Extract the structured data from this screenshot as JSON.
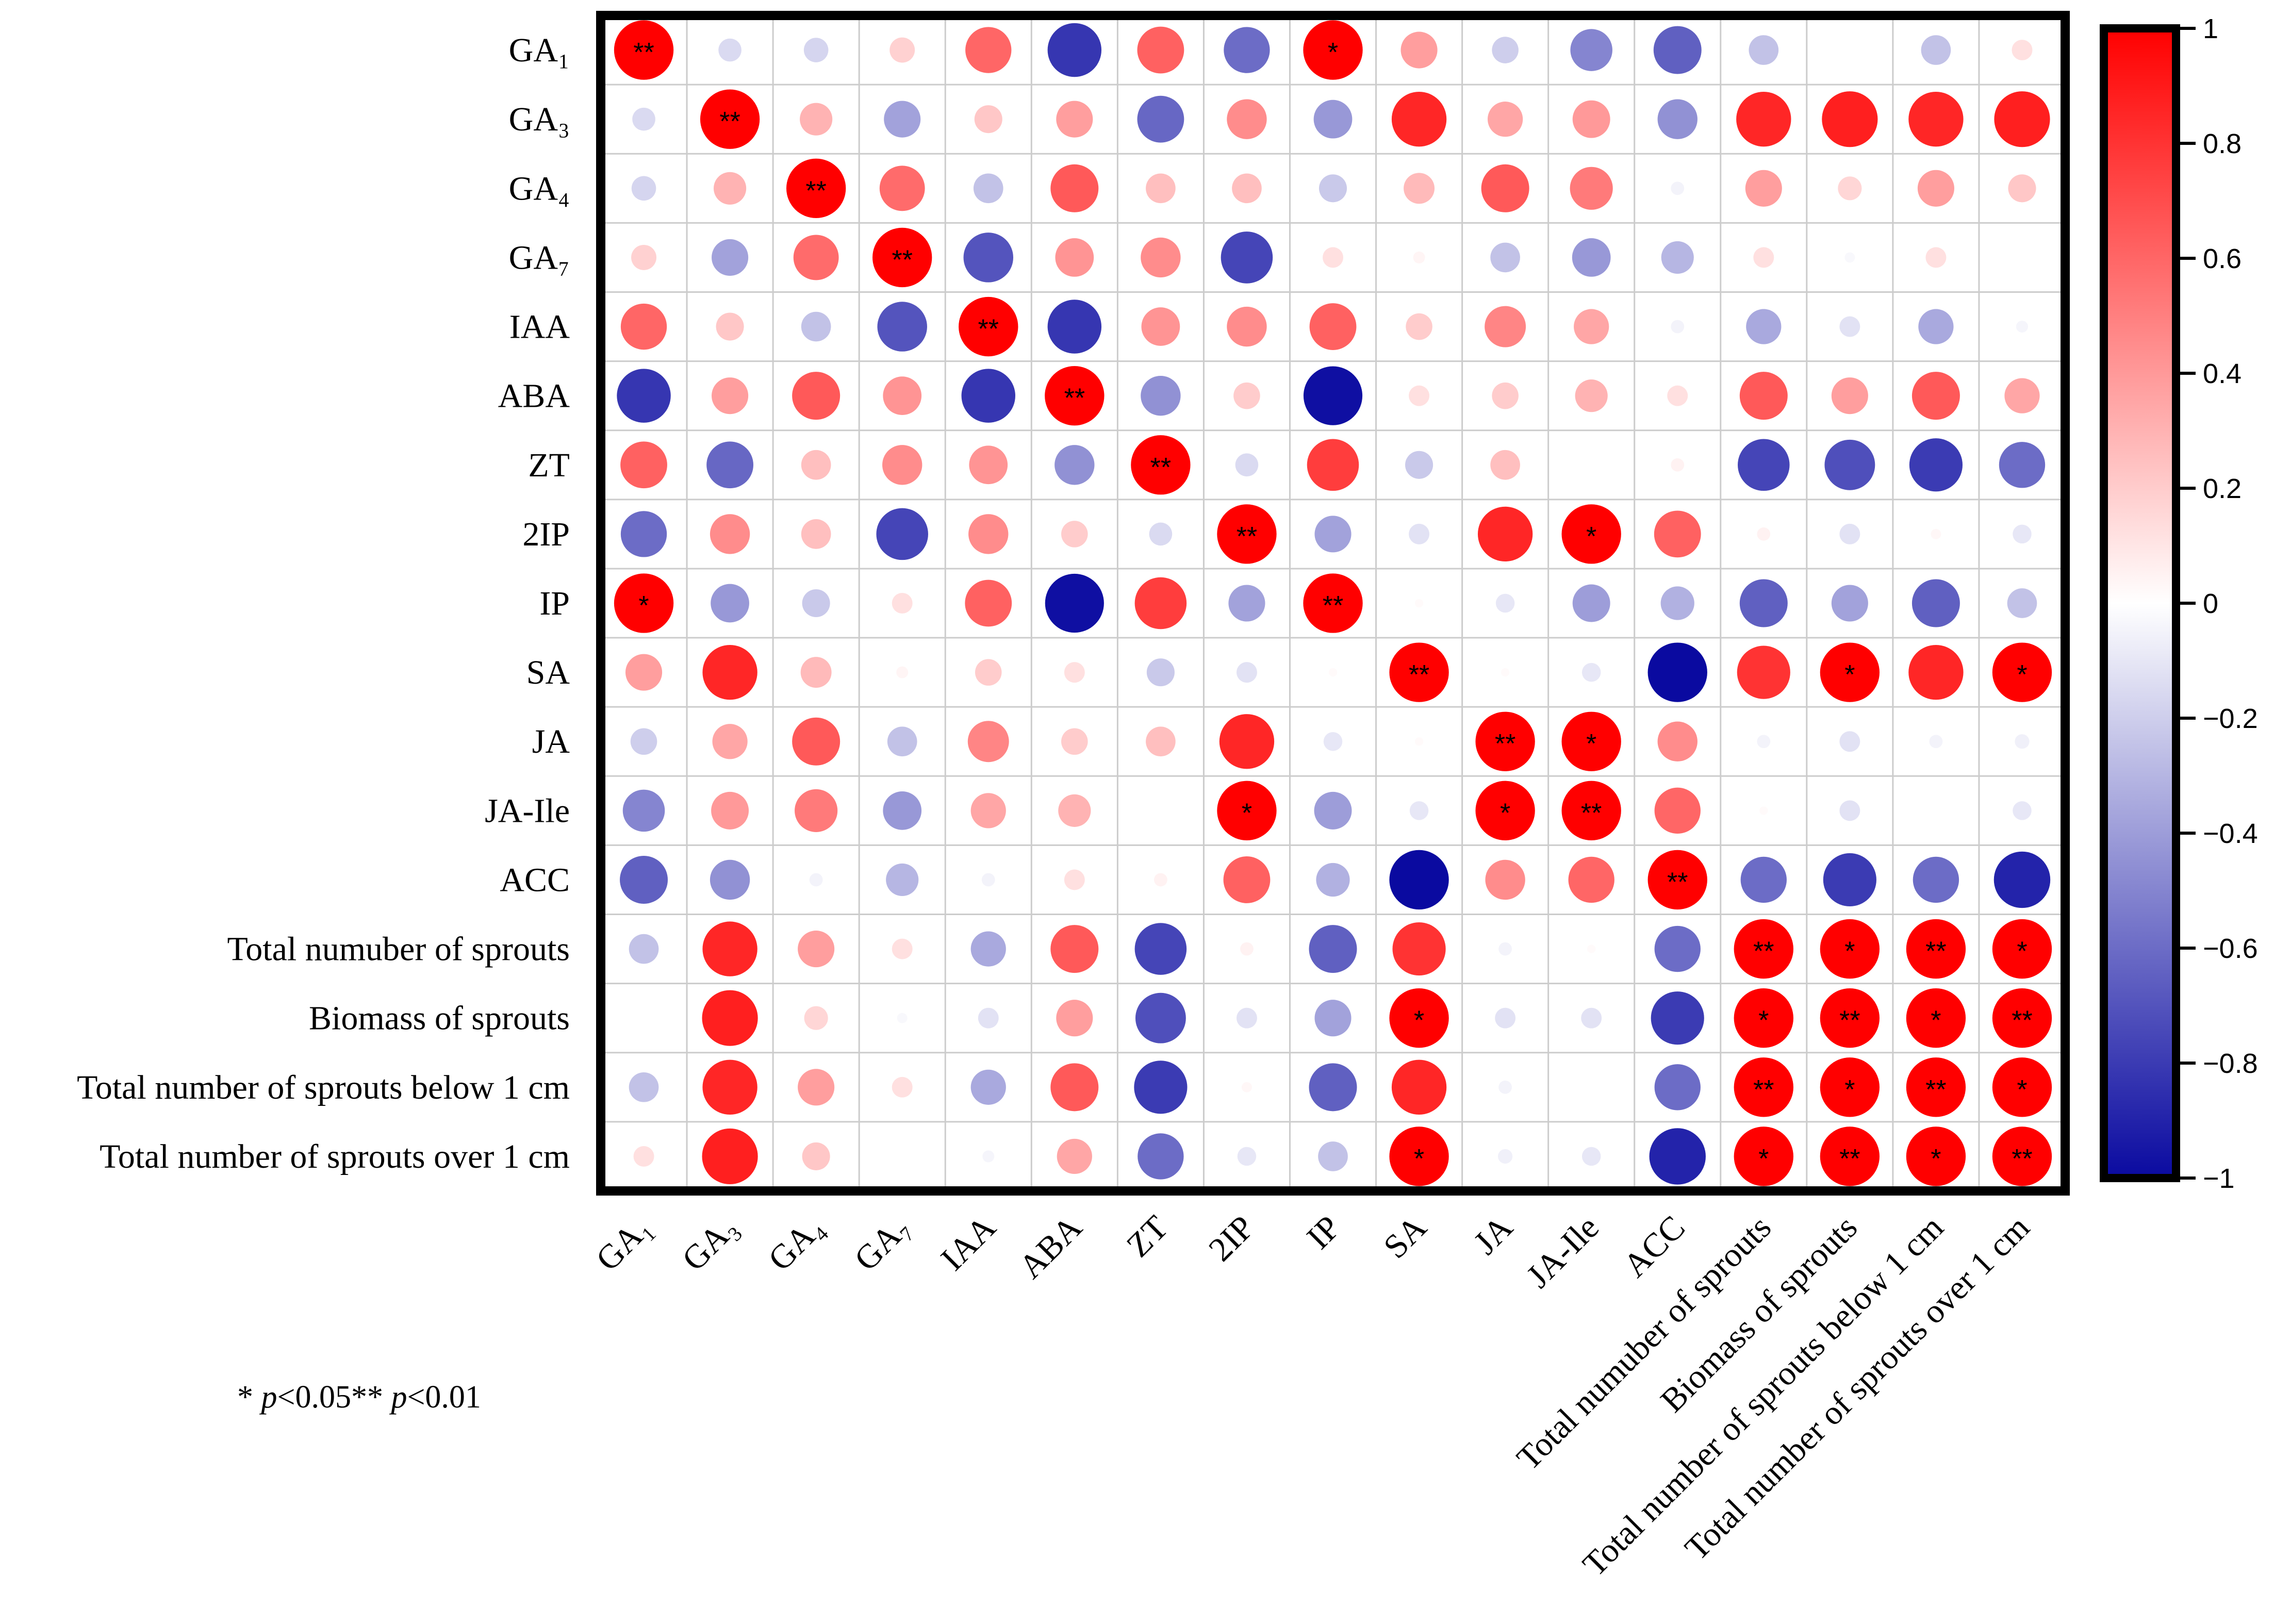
{
  "chart_data": {
    "type": "heatmap",
    "title": "",
    "labels": [
      "GA₁",
      "GA₃",
      "GA₄",
      "GA₇",
      "IAA",
      "ABA",
      "ZT",
      "2IP",
      "IP",
      "SA",
      "JA",
      "JA-Ile",
      "ACC",
      "Total numuber of sprouts",
      "Biomass of sprouts",
      "Total number of sprouts below 1 cm",
      "Total number of sprouts over 1 cm"
    ],
    "matrix": [
      [
        1,
        -0.15,
        -0.17,
        0.18,
        0.6,
        -0.82,
        0.62,
        -0.6,
        1,
        0.38,
        -0.2,
        -0.5,
        -0.65,
        -0.25,
        0,
        -0.25,
        0.12
      ],
      [
        -0.15,
        1,
        0.3,
        -0.38,
        0.22,
        0.38,
        -0.62,
        0.45,
        -0.42,
        0.85,
        0.35,
        0.4,
        -0.45,
        0.85,
        0.88,
        0.85,
        0.88
      ],
      [
        -0.17,
        0.3,
        1,
        0.58,
        -0.25,
        0.65,
        0.25,
        0.25,
        -0.22,
        0.27,
        0.65,
        0.52,
        -0.05,
        0.38,
        0.16,
        0.38,
        0.22
      ],
      [
        0.18,
        -0.38,
        0.58,
        1,
        -0.7,
        0.42,
        0.45,
        -0.76,
        0.12,
        0.04,
        -0.25,
        -0.42,
        -0.3,
        0.12,
        -0.03,
        0.12,
        0
      ],
      [
        0.6,
        0.22,
        -0.25,
        -0.7,
        1,
        -0.82,
        0.42,
        0.45,
        0.62,
        0.2,
        0.48,
        0.35,
        -0.05,
        -0.35,
        -0.12,
        -0.35,
        -0.04
      ],
      [
        -0.82,
        0.38,
        0.65,
        0.42,
        -0.82,
        1,
        -0.45,
        0.2,
        -0.98,
        0.12,
        0.2,
        0.3,
        0.12,
        0.65,
        0.38,
        0.65,
        0.35
      ],
      [
        0.62,
        -0.62,
        0.25,
        0.45,
        0.42,
        -0.45,
        1,
        -0.15,
        0.76,
        -0.22,
        0.25,
        0,
        0.05,
        -0.76,
        -0.72,
        -0.8,
        -0.6
      ],
      [
        -0.6,
        0.45,
        0.25,
        -0.76,
        0.45,
        0.2,
        -0.15,
        1,
        -0.38,
        -0.12,
        0.85,
        1,
        0.62,
        0.05,
        -0.12,
        0.03,
        -0.1
      ],
      [
        1,
        -0.42,
        -0.22,
        0.12,
        0.62,
        -0.98,
        0.76,
        -0.38,
        1,
        0.02,
        -0.1,
        -0.4,
        -0.32,
        -0.65,
        -0.38,
        -0.65,
        -0.25
      ],
      [
        0.38,
        0.85,
        0.27,
        0.04,
        0.2,
        0.12,
        -0.22,
        -0.12,
        0.02,
        1,
        0.02,
        -0.1,
        -1,
        0.8,
        1,
        0.85,
        1
      ],
      [
        -0.2,
        0.35,
        0.65,
        -0.25,
        0.48,
        0.2,
        0.25,
        0.85,
        -0.1,
        0.02,
        1,
        1,
        0.45,
        -0.05,
        -0.12,
        -0.05,
        -0.06
      ],
      [
        -0.5,
        0.4,
        0.52,
        -0.42,
        0.35,
        0.3,
        0,
        1,
        -0.4,
        -0.1,
        1,
        1,
        0.6,
        0.02,
        -0.12,
        0,
        -0.1
      ],
      [
        -0.65,
        -0.45,
        -0.05,
        -0.3,
        -0.05,
        0.12,
        0.05,
        0.62,
        -0.32,
        -1,
        0.45,
        0.6,
        1,
        -0.6,
        -0.8,
        -0.6,
        -0.9
      ],
      [
        -0.25,
        0.85,
        0.38,
        0.12,
        -0.35,
        0.65,
        -0.76,
        0.05,
        -0.65,
        0.8,
        -0.05,
        0.02,
        -0.6,
        1,
        1,
        1,
        1
      ],
      [
        0,
        0.88,
        0.16,
        -0.03,
        -0.12,
        0.38,
        -0.72,
        -0.12,
        -0.38,
        1,
        -0.12,
        -0.12,
        -0.8,
        1,
        1,
        1,
        1
      ],
      [
        -0.25,
        0.85,
        0.38,
        0.12,
        -0.35,
        0.65,
        -0.8,
        0.03,
        -0.65,
        0.85,
        -0.05,
        0,
        -0.6,
        1,
        1,
        1,
        1
      ],
      [
        0.12,
        0.88,
        0.22,
        0,
        -0.04,
        0.35,
        -0.6,
        -0.1,
        -0.25,
        1,
        -0.06,
        -0.1,
        -0.9,
        1,
        1,
        1,
        1
      ]
    ],
    "significance": [
      [
        "**",
        "",
        "",
        "",
        "",
        "",
        "",
        "",
        "*",
        "",
        "",
        "",
        "",
        "",
        "",
        "",
        ""
      ],
      [
        "",
        "**",
        "",
        "",
        "",
        "",
        "",
        "",
        "",
        "",
        "",
        "",
        "",
        "",
        "",
        "",
        ""
      ],
      [
        "",
        "",
        "**",
        "",
        "",
        "",
        "",
        "",
        "",
        "",
        "",
        "",
        "",
        "",
        "",
        "",
        ""
      ],
      [
        "",
        "",
        "",
        "**",
        "",
        "",
        "",
        "",
        "",
        "",
        "",
        "",
        "",
        "",
        "",
        "",
        ""
      ],
      [
        "",
        "",
        "",
        "",
        "**",
        "",
        "",
        "",
        "",
        "",
        "",
        "",
        "",
        "",
        "",
        "",
        ""
      ],
      [
        "",
        "",
        "",
        "",
        "",
        "**",
        "",
        "",
        "",
        "",
        "",
        "",
        "",
        "",
        "",
        "",
        ""
      ],
      [
        "",
        "",
        "",
        "",
        "",
        "",
        "**",
        "",
        "",
        "",
        "",
        "",
        "",
        "",
        "",
        "",
        ""
      ],
      [
        "",
        "",
        "",
        "",
        "",
        "",
        "",
        "**",
        "",
        "",
        "",
        "*",
        "",
        "",
        "",
        "",
        ""
      ],
      [
        "*",
        "",
        "",
        "",
        "",
        "",
        "",
        "",
        "**",
        "",
        "",
        "",
        "",
        "",
        "",
        "",
        ""
      ],
      [
        "",
        "",
        "",
        "",
        "",
        "",
        "",
        "",
        "",
        "**",
        "",
        "",
        "",
        "",
        "*",
        "",
        "*"
      ],
      [
        "",
        "",
        "",
        "",
        "",
        "",
        "",
        "",
        "",
        "",
        "**",
        "*",
        "",
        "",
        "",
        "",
        ""
      ],
      [
        "",
        "",
        "",
        "",
        "",
        "",
        "",
        "*",
        "",
        "",
        "*",
        "**",
        "",
        "",
        "",
        "",
        ""
      ],
      [
        "",
        "",
        "",
        "",
        "",
        "",
        "",
        "",
        "",
        "",
        "",
        "",
        "**",
        "",
        "",
        "",
        ""
      ],
      [
        "",
        "",
        "",
        "",
        "",
        "",
        "",
        "",
        "",
        "",
        "",
        "",
        "",
        "**",
        "*",
        "**",
        "*"
      ],
      [
        "",
        "",
        "",
        "",
        "",
        "",
        "",
        "",
        "",
        "*",
        "",
        "",
        "",
        "*",
        "**",
        "*",
        "**"
      ],
      [
        "",
        "",
        "",
        "",
        "",
        "",
        "",
        "",
        "",
        "",
        "",
        "",
        "",
        "**",
        "*",
        "**",
        "*"
      ],
      [
        "",
        "",
        "",
        "",
        "",
        "",
        "",
        "",
        "",
        "*",
        "",
        "",
        "",
        "*",
        "**",
        "*",
        "**"
      ]
    ],
    "colorbar": {
      "min": -1,
      "max": 1,
      "ticks": [
        1,
        0.8,
        0.6,
        0.4,
        0.2,
        0,
        -0.2,
        -0.4,
        -0.6,
        -0.8,
        -1
      ],
      "tick_labels": [
        "1",
        "0.8",
        "0.6",
        "0.4",
        "0.2",
        "0",
        "−0.2",
        "−0.4",
        "−0.6",
        "−0.8",
        "−1"
      ],
      "colors": {
        "negative": "#0a0aa0",
        "zero": "#ffffff",
        "positive": "#ff0000"
      }
    },
    "legend_note": {
      "part1_symbol": "* ",
      "part1_p": "p",
      "part1_value": "<0.05",
      "part2_symbol": "** ",
      "part2_p": "p",
      "part2_value": "<0.01"
    }
  }
}
